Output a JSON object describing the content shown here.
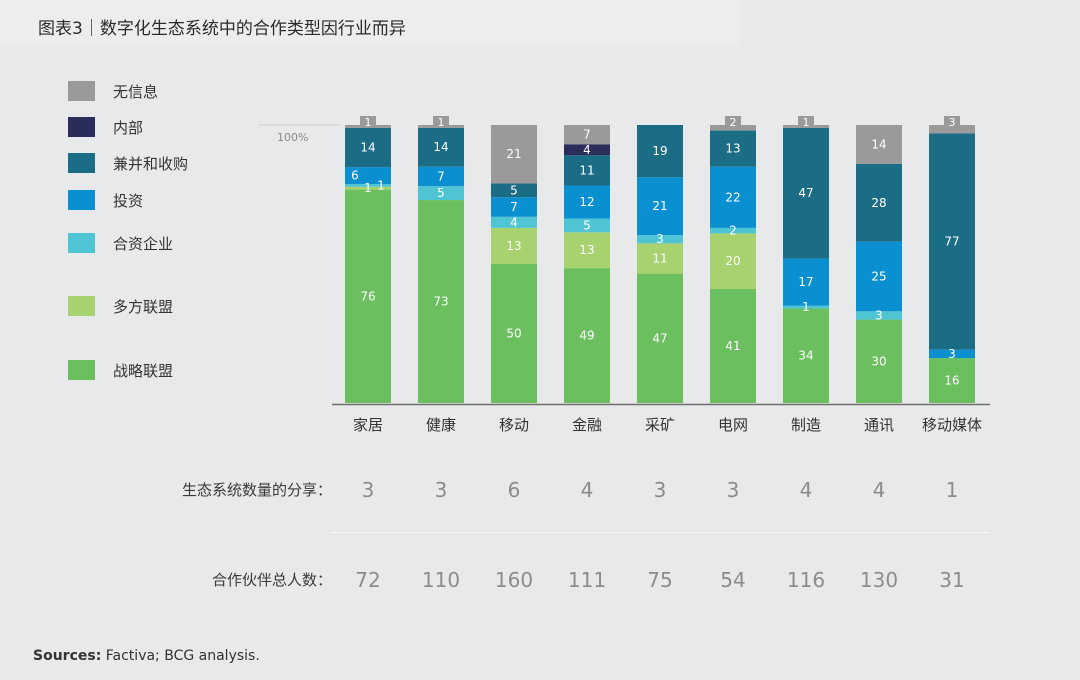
{
  "title": "图表3｜数字化生态系统中的合作类型因行业而异",
  "chart_data": {
    "type": "bar",
    "stacked": true,
    "percent": true,
    "categories": [
      "家居",
      "健康",
      "移动",
      "金融",
      "采矿",
      "电网",
      "制造",
      "通讯",
      "移动媒体"
    ],
    "series": [
      {
        "name": "战略联盟",
        "color": "#6cbf5f",
        "values": [
          76,
          73,
          50,
          49,
          47,
          41,
          34,
          30,
          16
        ]
      },
      {
        "name": "多方联盟",
        "color": "#a8d16f",
        "values": [
          1,
          0,
          13,
          13,
          11,
          20,
          0,
          0,
          0
        ]
      },
      {
        "name": "合资企业",
        "color": "#4fc4d3",
        "values": [
          1,
          5,
          4,
          5,
          3,
          2,
          1,
          3,
          0
        ]
      },
      {
        "name": "投资",
        "color": "#0a8fd0",
        "values": [
          6,
          7,
          7,
          12,
          21,
          22,
          17,
          25,
          3
        ]
      },
      {
        "name": "兼并和收购",
        "color": "#1b6d86",
        "values": [
          14,
          14,
          5,
          11,
          19,
          13,
          47,
          28,
          77
        ]
      },
      {
        "name": "内部",
        "color": "#2a2c5a",
        "values": [
          0,
          0,
          0,
          4,
          0,
          0,
          0,
          0,
          0
        ]
      },
      {
        "name": "无信息",
        "color": "#9a9a9a",
        "values": [
          1,
          1,
          21,
          7,
          0,
          2,
          1,
          14,
          3
        ]
      }
    ],
    "ylim": [
      0,
      100
    ],
    "y_ticks": [
      {
        "value": 100,
        "label": "100%"
      }
    ],
    "grid": false,
    "legend_position": "left"
  },
  "summary_rows": [
    {
      "label": "生态系统数量的分享：",
      "values": [
        "3",
        "3",
        "6",
        "4",
        "3",
        "3",
        "4",
        "4",
        "1"
      ]
    },
    {
      "label": "合作伙伴总人数：",
      "values": [
        "72",
        "110",
        "160",
        "111",
        "75",
        "54",
        "116",
        "130",
        "31"
      ]
    }
  ],
  "sources": {
    "label": "Sources:",
    "text": "Factiva; BCG analysis."
  }
}
